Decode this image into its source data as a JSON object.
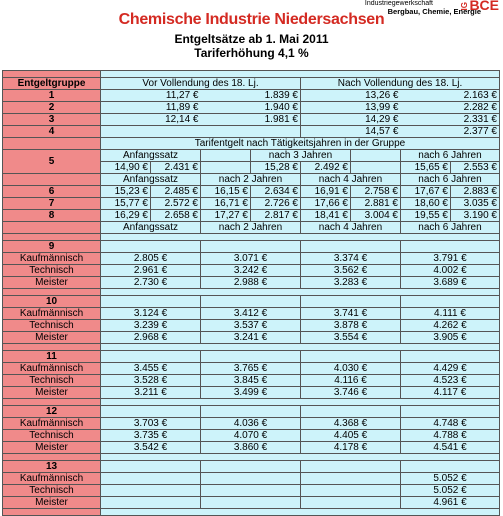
{
  "header": {
    "logo_top": "Industriegewerkschaft",
    "logo_sub": "Bergbau, Chemie, Energie",
    "logo_ig": "IG",
    "logo_mark": "BCE",
    "title": "Chemische Industrie Niedersachsen",
    "subtitle": "Entgeltsätze ab 1. Mai 2011",
    "raise": "Tariferhöhung 4,1 %"
  },
  "top": {
    "group_header": "Entgeltgruppe",
    "col_a": "Vor Vollendung des 18. Lj.",
    "col_b": "Nach Vollendung des 18. Lj.",
    "rows": [
      {
        "g": "1",
        "a1": "11,27 €",
        "a2": "1.839 €",
        "b1": "13,26 €",
        "b2": "2.163 €"
      },
      {
        "g": "2",
        "a1": "11,89 €",
        "a2": "1.940 €",
        "b1": "13,99 €",
        "b2": "2.282 €"
      },
      {
        "g": "3",
        "a1": "12,14 €",
        "a2": "1.981 €",
        "b1": "14,29 €",
        "b2": "2.331 €"
      },
      {
        "g": "4",
        "a1": "",
        "a2": "",
        "b1": "14,57 €",
        "b2": "2.377 €"
      }
    ]
  },
  "mid": {
    "caption": "Tarifentgelt nach Tätigkeitsjahren in der Gruppe",
    "g5": {
      "g": "5",
      "h_anf": "Anfangssatz",
      "h3": "nach 3 Jahren",
      "h6": "nach 6 Jahren",
      "anf1": "14,90 €",
      "anf2": "2.431 €",
      "j3a": "15,28 €",
      "j3b": "2.492 €",
      "j6a": "15,65 €",
      "j6b": "2.553 €"
    },
    "hdr": {
      "anf": "Anfangssatz",
      "j2": "nach 2 Jahren",
      "j4": "nach 4 Jahren",
      "j6": "nach 6 Jahren"
    },
    "rows": [
      {
        "g": "6",
        "v": [
          "15,23 €",
          "2.485 €",
          "16,15 €",
          "2.634 €",
          "16,91 €",
          "2.758 €",
          "17,67 €",
          "2.883 €"
        ]
      },
      {
        "g": "7",
        "v": [
          "15,77 €",
          "2.572 €",
          "16,71 €",
          "2.726 €",
          "17,66 €",
          "2.881 €",
          "18,60 €",
          "3.035 €"
        ]
      },
      {
        "g": "8",
        "v": [
          "16,29 €",
          "2.658 €",
          "17,27 €",
          "2.817 €",
          "18,41 €",
          "3.004 €",
          "19,55 €",
          "3.190 €"
        ]
      }
    ],
    "hdr2": {
      "anf": "Anfangssatz",
      "j2": "nach 2 Jahren",
      "j4": "nach 4 Jahren",
      "j6": "nach 6 Jahren"
    }
  },
  "groups": [
    {
      "g": "9",
      "rows": [
        {
          "l": "Kaufmännisch",
          "v": [
            "2.805 €",
            "3.071 €",
            "3.374 €",
            "3.791 €"
          ]
        },
        {
          "l": "Technisch",
          "v": [
            "2.961 €",
            "3.242 €",
            "3.562 €",
            "4.002 €"
          ]
        },
        {
          "l": "Meister",
          "v": [
            "2.730 €",
            "2.988 €",
            "3.283 €",
            "3.689 €"
          ]
        }
      ]
    },
    {
      "g": "10",
      "rows": [
        {
          "l": "Kaufmännisch",
          "v": [
            "3.124 €",
            "3.412 €",
            "3.741 €",
            "4.111 €"
          ]
        },
        {
          "l": "Technisch",
          "v": [
            "3.239 €",
            "3.537 €",
            "3.878 €",
            "4.262 €"
          ]
        },
        {
          "l": "Meister",
          "v": [
            "2.968 €",
            "3.241 €",
            "3.554 €",
            "3.905 €"
          ]
        }
      ]
    },
    {
      "g": "11",
      "rows": [
        {
          "l": "Kaufmännisch",
          "v": [
            "3.455 €",
            "3.765 €",
            "4.030 €",
            "4.429 €"
          ]
        },
        {
          "l": "Technisch",
          "v": [
            "3.528 €",
            "3.845 €",
            "4.116 €",
            "4.523 €"
          ]
        },
        {
          "l": "Meister",
          "v": [
            "3.211 €",
            "3.499 €",
            "3.746 €",
            "4.117 €"
          ]
        }
      ]
    },
    {
      "g": "12",
      "rows": [
        {
          "l": "Kaufmännisch",
          "v": [
            "3.703 €",
            "4.036 €",
            "4.368 €",
            "4.748 €"
          ]
        },
        {
          "l": "Technisch",
          "v": [
            "3.735 €",
            "4.070 €",
            "4.405 €",
            "4.788 €"
          ]
        },
        {
          "l": "Meister",
          "v": [
            "3.542 €",
            "3.860 €",
            "4.178 €",
            "4.541 €"
          ]
        }
      ]
    },
    {
      "g": "13",
      "rows": [
        {
          "l": "Kaufmännisch",
          "v": [
            "",
            "",
            "",
            "5.052 €"
          ]
        },
        {
          "l": "Technisch",
          "v": [
            "",
            "",
            "",
            "5.052 €"
          ]
        },
        {
          "l": "Meister",
          "v": [
            "",
            "",
            "",
            "4.961 €"
          ]
        }
      ]
    }
  ],
  "colors": {
    "group": "#f08a8a",
    "cell": "#cdf3fa",
    "title": "#d42a22"
  }
}
